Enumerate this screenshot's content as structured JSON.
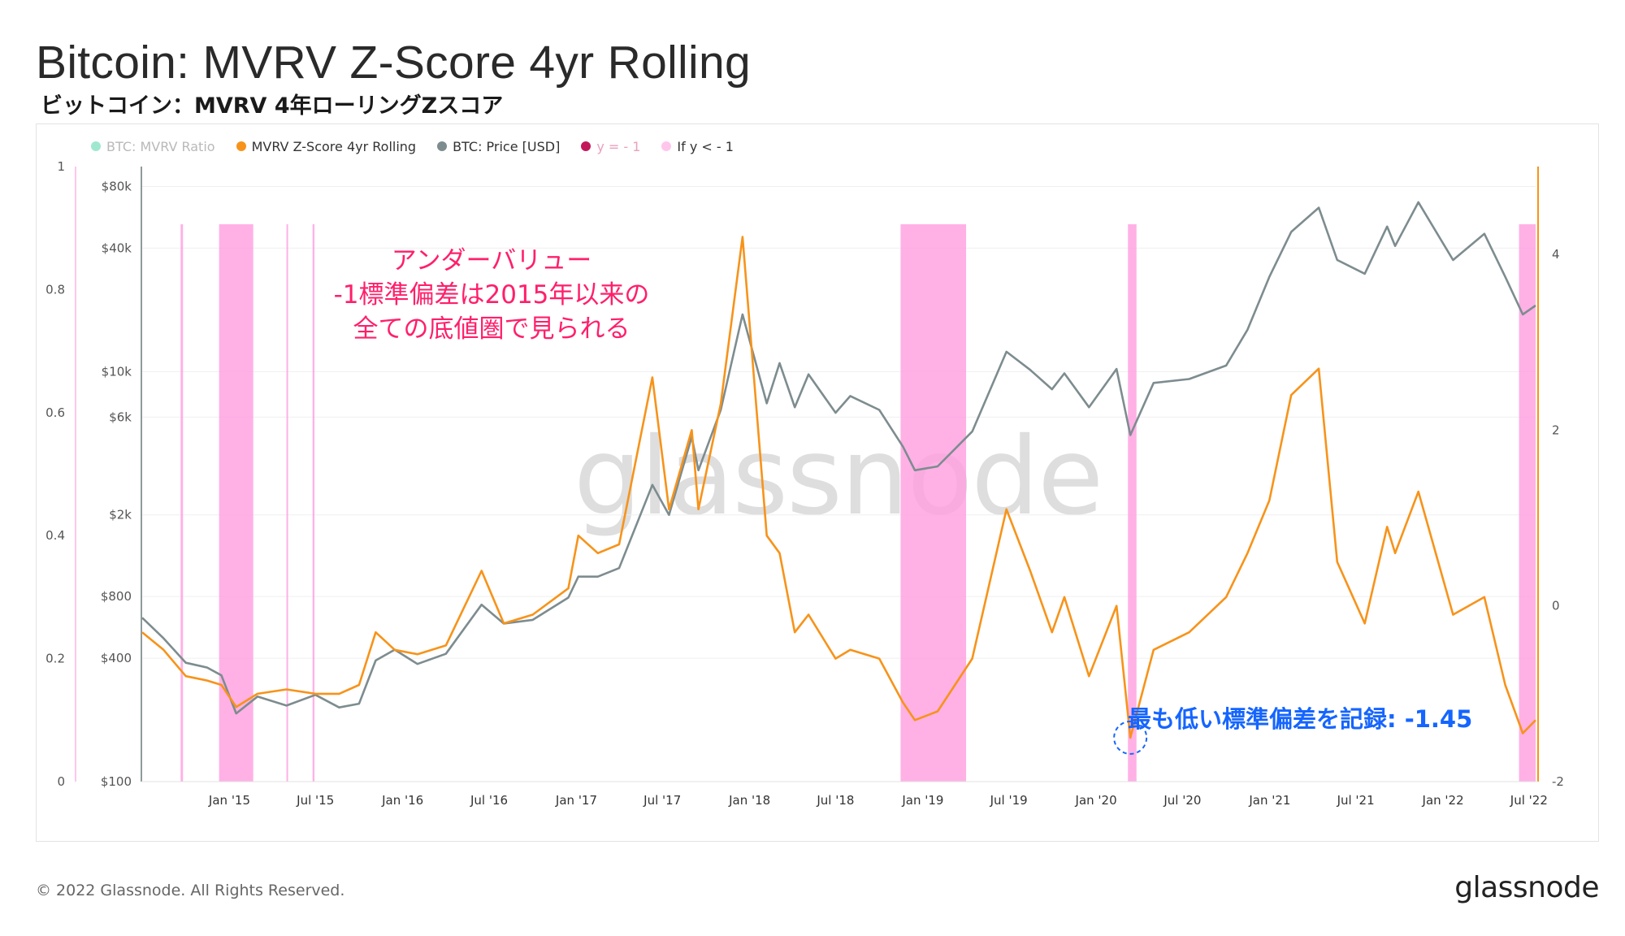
{
  "header": {
    "title": "Bitcoin: MVRV Z-Score 4yr Rolling",
    "subtitle": "ビットコイン：MVRV 4年ローリングZスコア"
  },
  "legend": [
    {
      "label": "BTC: MVRV Ratio",
      "color": "#3ed6a8",
      "active": false
    },
    {
      "label": "MVRV Z-Score 4yr Rolling",
      "color": "#f7931a",
      "active": true
    },
    {
      "label": "BTC: Price [USD]",
      "color": "#7d8c8f",
      "active": true
    },
    {
      "label": "y = - 1",
      "color": "#c2185b",
      "active": false
    },
    {
      "label": "If y < - 1",
      "color": "#ffb3e6",
      "active": true
    }
  ],
  "annotations": {
    "undervalue_line1": "アンダーバリュー",
    "undervalue_line2": "-1標準偏差は2015年以来の",
    "undervalue_line3": "全ての底値圏で見られる",
    "lowest_record": "最も低い標準偏差を記録: -1.45"
  },
  "watermark": "glassnode",
  "footer": {
    "copyright": "© 2022 Glassnode. All Rights Reserved.",
    "brand": "glassnode"
  },
  "chart_data": {
    "type": "line",
    "x_ticks": [
      "Jan '15",
      "Jul '15",
      "Jan '16",
      "Jul '16",
      "Jan '17",
      "Jul '17",
      "Jan '18",
      "Jul '18",
      "Jan '19",
      "Jul '19",
      "Jan '20",
      "Jul '20",
      "Jan '21",
      "Jul '21",
      "Jan '22",
      "Jul '22"
    ],
    "x_range": [
      "2014-07-01",
      "2022-07-15"
    ],
    "y_left_outer": {
      "label": "BTC: MVRV Ratio",
      "ticks": [
        "0",
        "0.2",
        "0.4",
        "0.6",
        "0.8",
        "1"
      ],
      "range": [
        0,
        1
      ]
    },
    "y_left_price": {
      "label": "BTC: Price [USD]",
      "scale": "log",
      "ticks": [
        "$100",
        "$400",
        "$800",
        "$2k",
        "$6k",
        "$10k",
        "$40k",
        "$80k"
      ],
      "range": [
        100,
        100000
      ]
    },
    "y_right": {
      "label": "MVRV Z-Score 4yr Rolling",
      "ticks": [
        "-2",
        "0",
        "2",
        "4"
      ],
      "range": [
        -2,
        5
      ]
    },
    "threshold": -1,
    "series": [
      {
        "name": "BTC: Price [USD]",
        "color": "#7d8c8f",
        "axis": "price",
        "points": [
          [
            "2014-07-01",
            630
          ],
          [
            "2014-08-15",
            500
          ],
          [
            "2014-10-01",
            380
          ],
          [
            "2014-11-15",
            360
          ],
          [
            "2014-12-15",
            330
          ],
          [
            "2015-01-15",
            215
          ],
          [
            "2015-03-01",
            260
          ],
          [
            "2015-05-01",
            235
          ],
          [
            "2015-07-01",
            265
          ],
          [
            "2015-08-20",
            230
          ],
          [
            "2015-10-01",
            240
          ],
          [
            "2015-11-05",
            390
          ],
          [
            "2015-12-15",
            440
          ],
          [
            "2016-02-01",
            375
          ],
          [
            "2016-04-01",
            420
          ],
          [
            "2016-06-15",
            730
          ],
          [
            "2016-08-01",
            590
          ],
          [
            "2016-10-01",
            615
          ],
          [
            "2016-12-15",
            790
          ],
          [
            "2017-01-05",
            1000
          ],
          [
            "2017-02-15",
            1000
          ],
          [
            "2017-04-01",
            1100
          ],
          [
            "2017-06-10",
            2800
          ],
          [
            "2017-07-15",
            2000
          ],
          [
            "2017-09-01",
            4800
          ],
          [
            "2017-09-15",
            3300
          ],
          [
            "2017-11-01",
            6500
          ],
          [
            "2017-12-17",
            19000
          ],
          [
            "2018-02-06",
            7000
          ],
          [
            "2018-03-05",
            11000
          ],
          [
            "2018-04-06",
            6700
          ],
          [
            "2018-05-05",
            9700
          ],
          [
            "2018-07-01",
            6300
          ],
          [
            "2018-08-01",
            7600
          ],
          [
            "2018-10-01",
            6500
          ],
          [
            "2018-11-20",
            4300
          ],
          [
            "2018-12-15",
            3300
          ],
          [
            "2019-02-01",
            3450
          ],
          [
            "2019-04-15",
            5100
          ],
          [
            "2019-06-26",
            12500
          ],
          [
            "2019-08-15",
            10200
          ],
          [
            "2019-09-30",
            8200
          ],
          [
            "2019-10-26",
            9800
          ],
          [
            "2019-12-17",
            6700
          ],
          [
            "2020-02-13",
            10300
          ],
          [
            "2020-03-13",
            4900
          ],
          [
            "2020-05-01",
            8800
          ],
          [
            "2020-07-15",
            9200
          ],
          [
            "2020-10-01",
            10700
          ],
          [
            "2020-11-15",
            16000
          ],
          [
            "2020-12-31",
            29000
          ],
          [
            "2021-02-15",
            48000
          ],
          [
            "2021-04-14",
            63000
          ],
          [
            "2021-05-23",
            35000
          ],
          [
            "2021-07-20",
            30000
          ],
          [
            "2021-09-05",
            51000
          ],
          [
            "2021-09-22",
            41000
          ],
          [
            "2021-11-10",
            67000
          ],
          [
            "2022-01-22",
            35000
          ],
          [
            "2022-03-29",
            47000
          ],
          [
            "2022-05-12",
            29000
          ],
          [
            "2022-06-18",
            19000
          ],
          [
            "2022-07-15",
            21000
          ]
        ]
      },
      {
        "name": "MVRV Z-Score 4yr Rolling",
        "color": "#f7931a",
        "axis": "right",
        "points": [
          [
            "2014-07-01",
            -0.3
          ],
          [
            "2014-08-15",
            -0.5
          ],
          [
            "2014-10-01",
            -0.8
          ],
          [
            "2014-11-15",
            -0.85
          ],
          [
            "2014-12-15",
            -0.9
          ],
          [
            "2015-01-15",
            -1.15
          ],
          [
            "2015-03-01",
            -1.0
          ],
          [
            "2015-05-01",
            -0.95
          ],
          [
            "2015-07-01",
            -1.0
          ],
          [
            "2015-08-20",
            -1.0
          ],
          [
            "2015-10-01",
            -0.9
          ],
          [
            "2015-11-05",
            -0.3
          ],
          [
            "2015-12-15",
            -0.5
          ],
          [
            "2016-02-01",
            -0.55
          ],
          [
            "2016-04-01",
            -0.45
          ],
          [
            "2016-06-15",
            0.4
          ],
          [
            "2016-08-01",
            -0.2
          ],
          [
            "2016-10-01",
            -0.1
          ],
          [
            "2016-12-15",
            0.2
          ],
          [
            "2017-01-05",
            0.8
          ],
          [
            "2017-02-15",
            0.6
          ],
          [
            "2017-04-01",
            0.7
          ],
          [
            "2017-06-10",
            2.6
          ],
          [
            "2017-07-15",
            1.1
          ],
          [
            "2017-09-01",
            2.0
          ],
          [
            "2017-09-15",
            1.1
          ],
          [
            "2017-11-01",
            2.3
          ],
          [
            "2017-12-17",
            4.2
          ],
          [
            "2018-02-06",
            0.8
          ],
          [
            "2018-03-05",
            0.6
          ],
          [
            "2018-04-06",
            -0.3
          ],
          [
            "2018-05-05",
            -0.1
          ],
          [
            "2018-07-01",
            -0.6
          ],
          [
            "2018-08-01",
            -0.5
          ],
          [
            "2018-10-01",
            -0.6
          ],
          [
            "2018-11-20",
            -1.1
          ],
          [
            "2018-12-15",
            -1.3
          ],
          [
            "2019-02-01",
            -1.2
          ],
          [
            "2019-04-15",
            -0.6
          ],
          [
            "2019-06-26",
            1.1
          ],
          [
            "2019-08-15",
            0.4
          ],
          [
            "2019-09-30",
            -0.3
          ],
          [
            "2019-10-26",
            0.1
          ],
          [
            "2019-12-17",
            -0.8
          ],
          [
            "2020-02-13",
            0.0
          ],
          [
            "2020-03-13",
            -1.5
          ],
          [
            "2020-05-01",
            -0.5
          ],
          [
            "2020-07-15",
            -0.3
          ],
          [
            "2020-10-01",
            0.1
          ],
          [
            "2020-11-15",
            0.6
          ],
          [
            "2020-12-31",
            1.2
          ],
          [
            "2021-02-15",
            2.4
          ],
          [
            "2021-04-14",
            2.7
          ],
          [
            "2021-05-23",
            0.5
          ],
          [
            "2021-07-20",
            -0.2
          ],
          [
            "2021-09-05",
            0.9
          ],
          [
            "2021-09-22",
            0.6
          ],
          [
            "2021-11-10",
            1.3
          ],
          [
            "2022-01-22",
            -0.1
          ],
          [
            "2022-03-29",
            0.1
          ],
          [
            "2022-05-12",
            -0.9
          ],
          [
            "2022-06-18",
            -1.45
          ],
          [
            "2022-07-15",
            -1.3
          ]
        ]
      }
    ],
    "shaded_periods": [
      [
        "2014-09-20",
        "2014-09-25"
      ],
      [
        "2014-12-10",
        "2015-02-20"
      ],
      [
        "2015-05-01",
        "2015-05-04"
      ],
      [
        "2015-06-25",
        "2015-06-29"
      ],
      [
        "2018-11-15",
        "2019-04-02"
      ],
      [
        "2020-03-08",
        "2020-03-26"
      ],
      [
        "2022-06-10",
        "2022-07-15"
      ]
    ]
  }
}
